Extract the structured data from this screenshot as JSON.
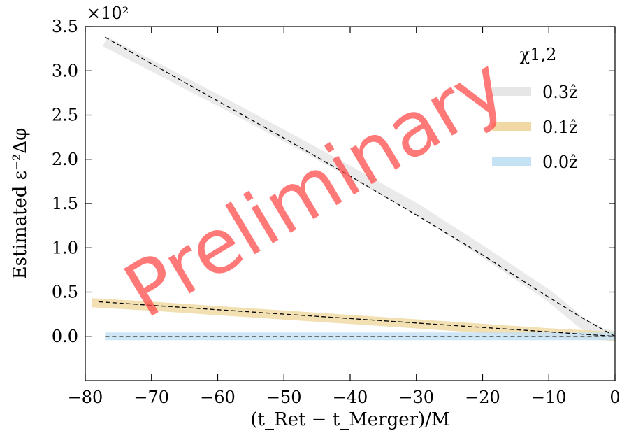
{
  "chart_data": {
    "type": "line",
    "xlabel": "(t_Ret − t_Merger)/M",
    "ylabel": "Estimated ε⁻²Δφ",
    "y_scale_label": "×10²",
    "xlim": [
      -80,
      0
    ],
    "ylim": [
      -0.5,
      3.5
    ],
    "xticks": [
      -80,
      -70,
      -60,
      -50,
      -40,
      -30,
      -20,
      -10,
      0
    ],
    "yticks": [
      0.0,
      0.5,
      1.0,
      1.5,
      2.0,
      2.5,
      3.0,
      3.5
    ],
    "xtick_labels": [
      "−80",
      "−70",
      "−60",
      "−50",
      "−40",
      "−30",
      "−20",
      "−10",
      "0"
    ],
    "ytick_labels": [
      "0.0",
      "0.5",
      "1.0",
      "1.5",
      "2.0",
      "2.5",
      "3.0",
      "3.5"
    ],
    "legend_title": "χ1,2",
    "legend_position": "top-right",
    "watermark": "Preliminary",
    "series": [
      {
        "name": "0.3ẑ",
        "color": "#e6e6e6",
        "x": [
          -77,
          -70,
          -60,
          -50,
          -40,
          -30,
          -20,
          -10,
          -5,
          -2,
          0
        ],
        "y": [
          3.33,
          3.06,
          2.67,
          2.27,
          1.86,
          1.44,
          0.96,
          0.46,
          0.15,
          0.03,
          0.0
        ]
      },
      {
        "name": "0.1ẑ",
        "color": "#f0d9a4",
        "x": [
          -79,
          -70,
          -60,
          -50,
          -40,
          -30,
          -20,
          -10,
          0
        ],
        "y": [
          0.38,
          0.34,
          0.29,
          0.24,
          0.19,
          0.14,
          0.09,
          0.04,
          0.0
        ]
      },
      {
        "name": "0.0ẑ",
        "color": "#c5e2f5",
        "x": [
          -77,
          -60,
          -40,
          -20,
          0
        ],
        "y": [
          0.0,
          0.0,
          0.0,
          0.0,
          0.0
        ]
      }
    ],
    "reference_lines": [
      {
        "style": "dashed",
        "color": "#000000",
        "x": [
          -77,
          -70,
          -60,
          -50,
          -40,
          -30,
          -20,
          -10,
          -5,
          0
        ],
        "y": [
          3.38,
          3.08,
          2.66,
          2.24,
          1.81,
          1.37,
          0.92,
          0.44,
          0.21,
          0.0
        ]
      },
      {
        "style": "dashed",
        "color": "#000000",
        "x": [
          -78,
          -70,
          -60,
          -50,
          -40,
          -30,
          -20,
          -10,
          0
        ],
        "y": [
          0.39,
          0.35,
          0.3,
          0.25,
          0.2,
          0.15,
          0.1,
          0.05,
          0.0
        ]
      },
      {
        "style": "dashed",
        "color": "#000000",
        "x": [
          -77,
          0
        ],
        "y": [
          0.0,
          0.0
        ]
      }
    ]
  }
}
